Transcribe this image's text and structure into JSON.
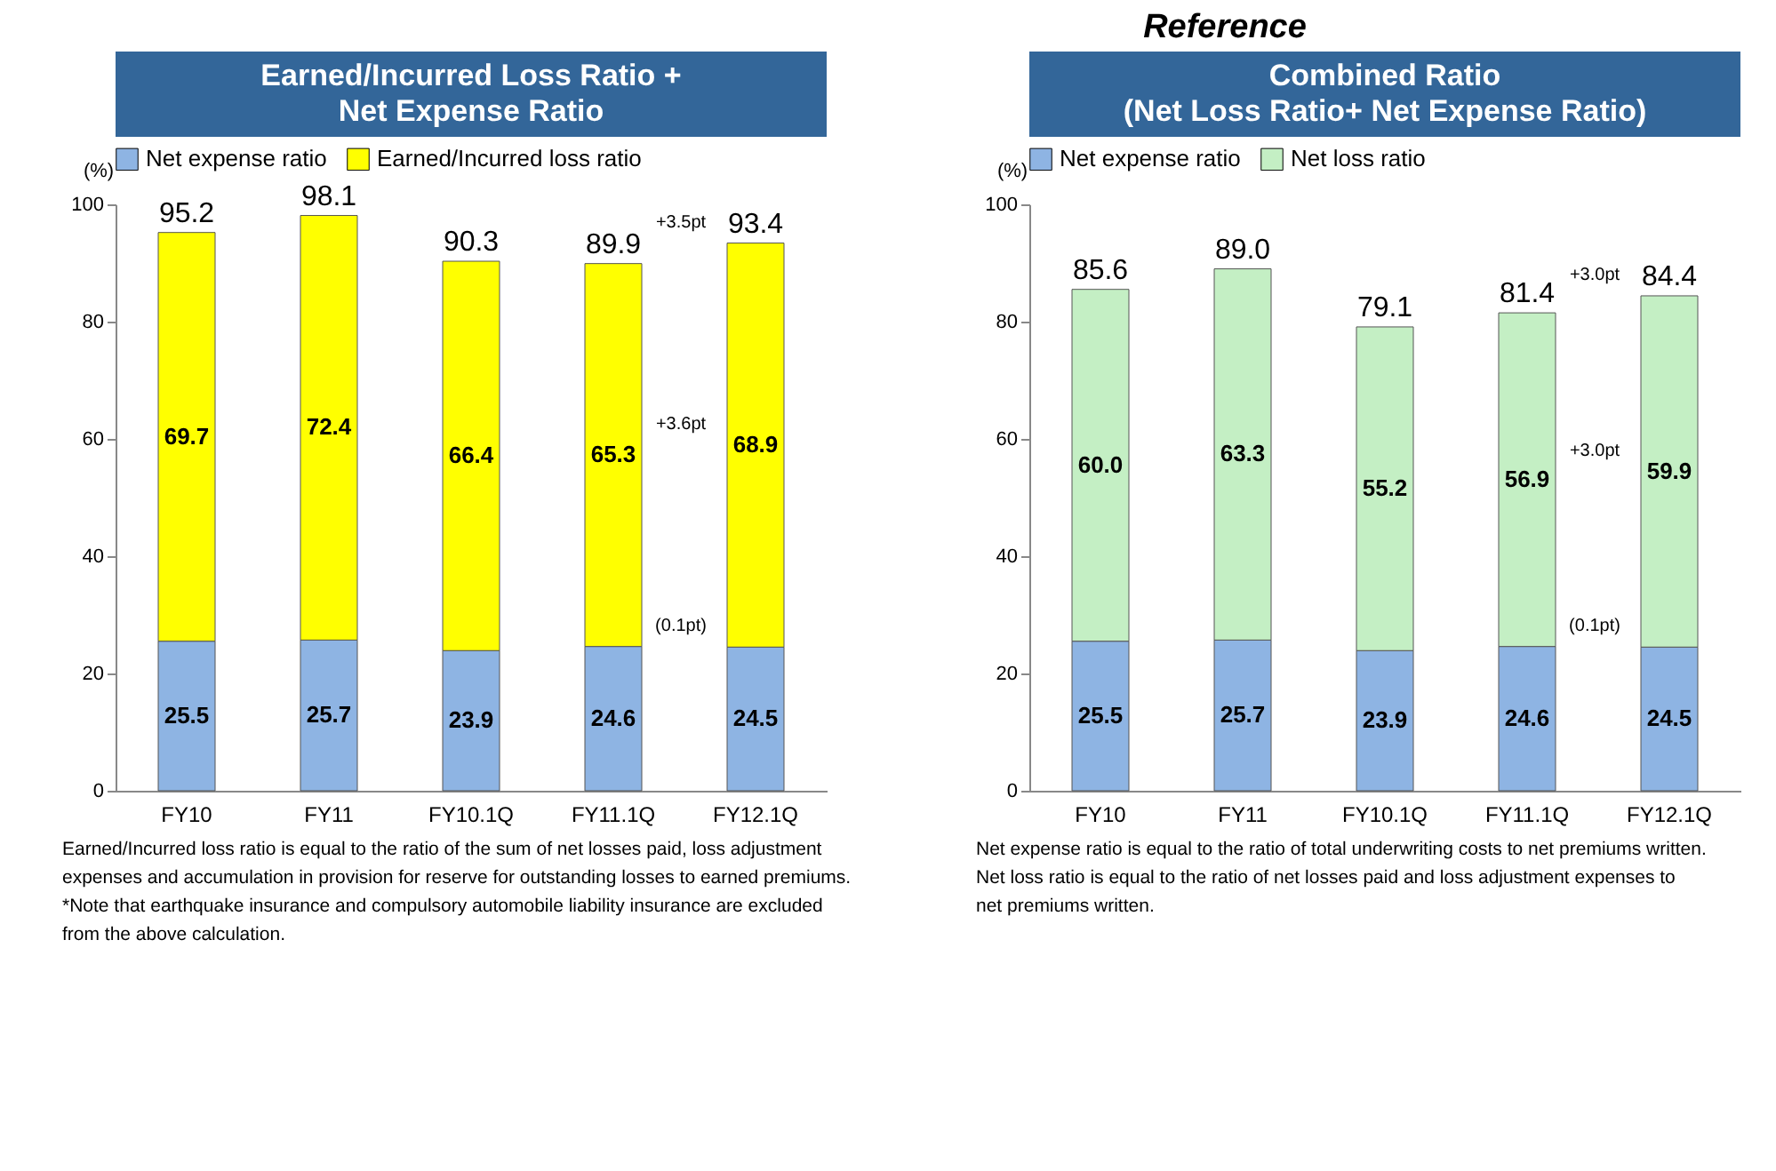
{
  "chart_data": [
    {
      "type": "bar",
      "title": "Earned/Incurred Loss Ratio +\nNet Expense Ratio",
      "ylabel": "(%)",
      "stacked": true,
      "categories": [
        "FY10",
        "FY11",
        "FY10.1Q",
        "FY11.1Q",
        "FY12.1Q"
      ],
      "series": [
        {
          "name": "Net expense ratio",
          "color": "#8EB4E3",
          "values": [
            25.5,
            25.7,
            23.9,
            24.6,
            24.5
          ]
        },
        {
          "name": "Earned/Incurred loss ratio",
          "color": "#FFFF00",
          "values": [
            69.7,
            72.4,
            66.4,
            65.3,
            68.9
          ]
        }
      ],
      "totals": [
        "95.2",
        "98.1",
        "90.3",
        "89.9",
        "93.4"
      ],
      "data_labels": true,
      "ylim": [
        0,
        100
      ],
      "yticks": [
        0,
        20,
        40,
        60,
        80,
        100
      ],
      "legend": "top",
      "annotations": [
        {
          "text": "+3.5pt",
          "x": "FY12.1Q",
          "y": 93.4
        },
        "+3.6pt",
        {
          "text": "(0.1pt)",
          "x": "FY12.1Q",
          "y": 24.5
        },
        "Earned/Incurred loss ratio is equal to the ratio of the sum of net losses paid, loss adjustment",
        "expenses and accumulation in provision for reserve for outstanding losses to earned premiums.",
        "*Note that earthquake insurance and compulsory automobile liability insurance are excluded",
        "from the above calculation."
      ]
    },
    {
      "type": "bar",
      "title": "Combined Ratio\n(Net Loss Ratio+ Net Expense Ratio)",
      "subtitle": "Reference",
      "ylabel": "(%)",
      "stacked": true,
      "categories": [
        "FY10",
        "FY11",
        "FY10.1Q",
        "FY11.1Q",
        "FY12.1Q"
      ],
      "series": [
        {
          "name": "Net expense ratio",
          "color": "#8EB4E3",
          "values": [
            25.5,
            25.7,
            23.9,
            24.6,
            24.5
          ]
        },
        {
          "name": "Net loss ratio",
          "color": "#C4EFC4",
          "values": [
            60.0,
            63.3,
            55.2,
            56.9,
            59.9
          ],
          "value_labels": [
            "60.0",
            "63.3",
            "55.2",
            "56.9",
            "59.9"
          ]
        }
      ],
      "totals": [
        "85.6",
        "89.0",
        "79.1",
        "81.4",
        "84.4"
      ],
      "data_labels": true,
      "ylim": [
        0,
        100
      ],
      "yticks": [
        0,
        20,
        40,
        60,
        80,
        100
      ],
      "legend": "top",
      "annotations": [
        {
          "text": "+3.0pt",
          "x": "FY12.1Q",
          "y": 84.4
        },
        "+3.0pt",
        {
          "text": "(0.1pt)",
          "x": "FY12.1Q",
          "y": 24.5
        },
        "Net expense ratio is equal to the ratio of total underwriting costs to net premiums written.",
        "Net loss ratio is equal to the ratio of net losses paid and loss adjustment expenses to",
        "net premiums written."
      ]
    }
  ]
}
